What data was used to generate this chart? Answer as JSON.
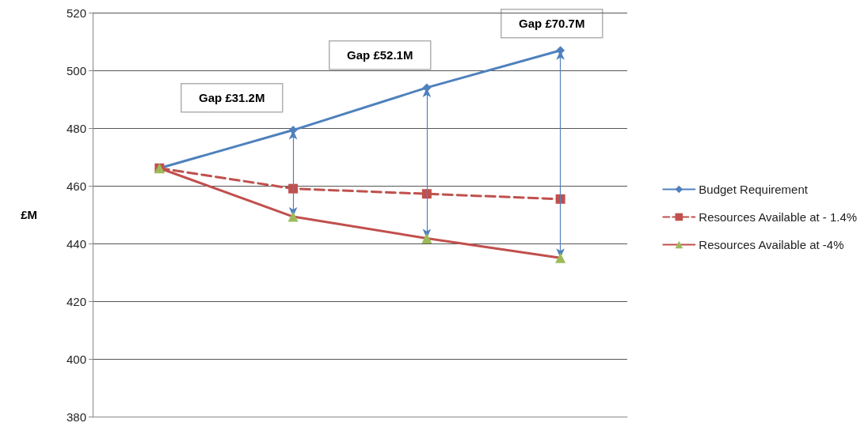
{
  "chart_data": {
    "type": "line",
    "ylabel": "£M",
    "categories": [
      null,
      null,
      null,
      null
    ],
    "series": [
      {
        "name": "Budget Requirement",
        "color": "#4f81bd",
        "marker": "diamond",
        "line_style": "solid",
        "values": [
          466.1,
          479.3,
          494.0,
          506.9
        ]
      },
      {
        "name": "Resources Available at - 1.4%",
        "color": "#c0504d",
        "marker": "square",
        "line_style": "dashed",
        "values": [
          466.1,
          459.0,
          457.2,
          455.4
        ]
      },
      {
        "name": "Resources Available at -4%",
        "color": "#c0504d",
        "colors": [
          "#9bbb59",
          "#9bbb59",
          "#9bbb59",
          "#9bbb59"
        ],
        "marker": "triangle",
        "line_style": "solid",
        "values": [
          466.1,
          449.3,
          441.8,
          435.0
        ]
      }
    ],
    "ylim": [
      380,
      520
    ],
    "yticks": [
      380,
      400,
      420,
      440,
      460,
      480,
      500,
      520
    ],
    "grid": "y",
    "legend": "right",
    "annotations": [
      "Gap £31.2M",
      "Gap £52.1M",
      "Gap £70.7M"
    ]
  }
}
